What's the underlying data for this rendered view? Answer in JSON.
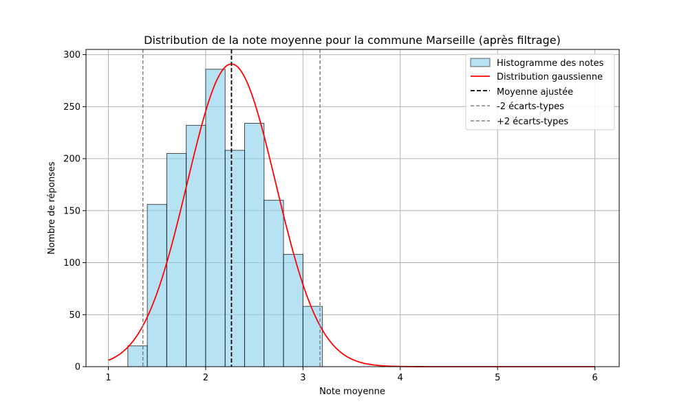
{
  "chart_data": {
    "type": "bar",
    "title": "Distribution de la note moyenne pour la commune Marseille (après filtrage)",
    "xlabel": "Note moyenne",
    "ylabel": "Nombre de réponses",
    "xlim": [
      0.77,
      6.25
    ],
    "ylim": [
      0,
      305
    ],
    "xticks": [
      1,
      2,
      3,
      4,
      5,
      6
    ],
    "yticks": [
      0,
      50,
      100,
      150,
      200,
      250,
      300
    ],
    "grid": true,
    "legend_position": "top-right",
    "histogram": {
      "name": "Histogramme des notes",
      "color": "#87CEEB",
      "edge_color": "#000000",
      "bins": [
        {
          "x0": 1.2,
          "x1": 1.4,
          "count": 20
        },
        {
          "x0": 1.4,
          "x1": 1.6,
          "count": 156
        },
        {
          "x0": 1.6,
          "x1": 1.8,
          "count": 205
        },
        {
          "x0": 1.8,
          "x1": 2.0,
          "count": 232
        },
        {
          "x0": 2.0,
          "x1": 2.2,
          "count": 286
        },
        {
          "x0": 2.2,
          "x1": 2.4,
          "count": 208
        },
        {
          "x0": 2.4,
          "x1": 2.6,
          "count": 234
        },
        {
          "x0": 2.6,
          "x1": 2.8,
          "count": 160
        },
        {
          "x0": 2.8,
          "x1": 3.0,
          "count": 108
        },
        {
          "x0": 3.0,
          "x1": 3.2,
          "count": 58
        }
      ]
    },
    "gaussian": {
      "name": "Distribution gaussienne",
      "color": "#ff0000",
      "x_range": [
        1,
        6
      ],
      "mean": 2.265,
      "sd": 0.455,
      "peak": 291
    },
    "vlines": [
      {
        "name": "Moyenne ajustée",
        "x": 2.265,
        "color": "#000000",
        "style": "dashed"
      },
      {
        "name": "-2 écarts-types",
        "x": 1.355,
        "color": "#808080",
        "style": "dashed"
      },
      {
        "name": "+2 écarts-types",
        "x": 3.175,
        "color": "#808080",
        "style": "dashed"
      }
    ]
  }
}
